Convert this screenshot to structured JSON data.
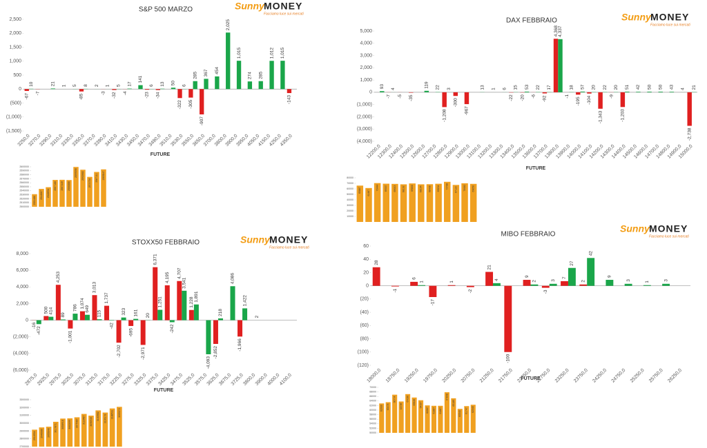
{
  "logo": {
    "first": "Sunny",
    "second": "MONEY",
    "tagline": "Facciamo luce sui mercati"
  },
  "chart_data": [
    {
      "type": "bar",
      "title": "S&P 500 MARZO",
      "x_label": "FUTURE",
      "categories": [
        "3250,0",
        "3270,0",
        "3290,0",
        "3310,0",
        "3330,0",
        "3350,0",
        "3370,0",
        "3390,0",
        "3410,0",
        "3430,0",
        "3450,0",
        "3470,0",
        "3490,0",
        "3510,0",
        "3530,0",
        "3550,0",
        "3650,0",
        "3700,0",
        "3800,0",
        "3900,0",
        "3950,0",
        "4050,0",
        "4150,0",
        "4250,0",
        "4350,0"
      ],
      "series": [
        {
          "color": "#e02020",
          "values": [
            -67,
            -7,
            null,
            null,
            null,
            -85,
            null,
            -3,
            -32,
            -4,
            null,
            -23,
            -34,
            null,
            -322,
            -305,
            -907,
            null,
            null,
            null,
            null,
            null,
            null,
            null,
            -143
          ]
        },
        {
          "color": "#1aa64a",
          "values": [
            10,
            null,
            21,
            1,
            5,
            8,
            2,
            1,
            5,
            17,
            141,
            6,
            13,
            50,
            6,
            285,
            367,
            454,
            2025,
            1015,
            274,
            285,
            1012,
            1015,
            null
          ],
          "value_labels": [
            "10",
            null,
            "21",
            "1",
            "5",
            "8",
            "2",
            "1",
            "5",
            "17",
            "141",
            "6",
            "13",
            "50",
            "6",
            "285",
            "367",
            "454",
            "2,025",
            "1,015",
            "274",
            "285",
            "1,012",
            "1,015",
            null
          ]
        }
      ],
      "ylim": [
        -1500,
        2500
      ],
      "yticks": [
        {
          "value": 2500,
          "label": "2,500"
        },
        {
          "value": 2000,
          "label": "2,000"
        },
        {
          "value": 1500,
          "label": "1,500"
        },
        {
          "value": 1000,
          "label": "1,000"
        },
        500,
        0,
        {
          "value": -500,
          "label": "(500)"
        },
        {
          "value": -1000,
          "label": "(1,000)"
        },
        {
          "value": -1500,
          "label": "(1,500)"
        }
      ]
    },
    {
      "type": "bar",
      "title": "DAX FEBBRAIO",
      "x_label": "FUTURE",
      "categories": [
        "12200,0",
        "12300,0",
        "12400,0",
        "12500,0",
        "12600,0",
        "12700,0",
        "12800,0",
        "12900,0",
        "13000,0",
        "13100,0",
        "13200,0",
        "13300,0",
        "13400,0",
        "13500,0",
        "13600,0",
        "13700,0",
        "13800,0",
        "13900,0",
        "14000,0",
        "14100,0",
        "14200,0",
        "14300,0",
        "14400,0",
        "14500,0",
        "14600,0",
        "14700,0",
        "14800,0",
        "14900,0",
        "15000,0"
      ],
      "series": [
        {
          "color": "#e02020",
          "values": [
            null,
            -7,
            -5,
            -35,
            null,
            null,
            -1208,
            -300,
            -967,
            null,
            null,
            null,
            -22,
            -20,
            -6,
            -92,
            4368,
            -1,
            -195,
            -104,
            -1343,
            -9,
            -1203,
            null,
            null,
            null,
            null,
            null,
            -2738
          ],
          "value_labels": [
            null,
            "-7",
            "-5",
            "-35",
            null,
            null,
            "-1,208",
            "-300",
            "-967",
            null,
            null,
            null,
            "-22",
            "-20",
            "-6",
            "-92",
            "4,368",
            "-1",
            "-195",
            "-104",
            "-1,343",
            "-9",
            "-1,203",
            null,
            null,
            null,
            null,
            null,
            "-2,738"
          ]
        },
        {
          "color": "#1aa64a",
          "values": [
            93,
            4,
            null,
            null,
            119,
            22,
            3,
            null,
            null,
            13,
            1,
            6,
            15,
            53,
            22,
            17,
            4337,
            18,
            57,
            20,
            22,
            20,
            51,
            42,
            50,
            50,
            43,
            4,
            21
          ],
          "value_labels": [
            "93",
            "4",
            null,
            null,
            "119",
            "22",
            "3",
            null,
            null,
            "13",
            "1",
            "6",
            "15",
            "53",
            "22",
            "17",
            "4,337",
            "18",
            "57",
            "20",
            "22",
            "20",
            "51",
            "42",
            "50",
            "50",
            "43",
            "4",
            "21"
          ]
        }
      ],
      "ylim": [
        -4000,
        5000
      ],
      "yticks": [
        {
          "value": 5000,
          "label": "5,000"
        },
        {
          "value": 4000,
          "label": "4,000"
        },
        {
          "value": 3000,
          "label": "3,000"
        },
        {
          "value": 2000,
          "label": "2,000"
        },
        {
          "value": 1000,
          "label": "1,000"
        },
        0,
        {
          "value": -1000,
          "label": "(1,000)"
        },
        {
          "value": -2000,
          "label": "(2,000)"
        },
        {
          "value": -3000,
          "label": "(3,000)"
        },
        {
          "value": -4000,
          "label": "(4,000)"
        }
      ]
    },
    {
      "type": "bar",
      "title": "STOXX50 FEBBRAIO",
      "x_label": "FUTURE",
      "categories": [
        "2875,0",
        "2925,0",
        "2975,0",
        "3025,0",
        "3075,0",
        "3125,0",
        "3175,0",
        "3225,0",
        "3275,0",
        "3325,0",
        "3375,0",
        "3425,0",
        "3475,0",
        "3525,0",
        "3575,0",
        "3625,0",
        "3675,0",
        "3725,0",
        "3800,0",
        "3900,0",
        "4000,0",
        "4100,0"
      ],
      "series": [
        {
          "color": "#e02020",
          "values": [
            -16,
            500,
            4253,
            -1001,
            1074,
            3013,
            1737,
            -2702,
            -695,
            -2971,
            6371,
            4195,
            4707,
            1228,
            null,
            -2852,
            null,
            -1966,
            null,
            null,
            null,
            null
          ],
          "value_labels": [
            "-16",
            "500",
            "4,253",
            "-1,001",
            "1,074",
            "3,013",
            "1,737",
            "-2,702",
            "-695",
            "-2,971",
            "6,371",
            "4,195",
            "4,707",
            "1,228",
            null,
            "-2,852",
            null,
            "-1,966",
            null,
            null,
            null,
            null
          ]
        },
        {
          "color": "#1aa64a",
          "values": [
            -472,
            414,
            89,
            786,
            649,
            115,
            -42,
            323,
            161,
            20,
            1251,
            -242,
            3541,
            1891,
            -4093,
            218,
            4086,
            1422,
            2,
            null,
            null,
            null
          ],
          "value_labels": [
            "-472",
            "414",
            "89",
            "786",
            "649",
            "115",
            "-42",
            "323",
            "161",
            "20",
            "1,251",
            "-242",
            "3,541",
            "1,891",
            "-4,093",
            "218",
            "4,086",
            "1,422",
            "2",
            null,
            null,
            null
          ]
        }
      ],
      "ylim": [
        -6000,
        8000
      ],
      "yticks": [
        {
          "value": 8000,
          "label": "8,000"
        },
        {
          "value": 6000,
          "label": "6,000"
        },
        {
          "value": 4000,
          "label": "4,000"
        },
        {
          "value": 2000,
          "label": "2,000"
        },
        0,
        {
          "value": -2000,
          "label": "(2,000)"
        },
        {
          "value": -4000,
          "label": "(4,000)"
        },
        {
          "value": -6000,
          "label": "(6,000)"
        }
      ]
    },
    {
      "type": "bar",
      "title": "MIBO FEBBRAIO",
      "x_label": "FUTURE",
      "categories": [
        "18000,0",
        "18750,0",
        "19250,0",
        "19750,0",
        "20250,0",
        "20750,0",
        "21250,0",
        "21750,0",
        "22250,0",
        "22750,0",
        "23250,0",
        "23750,0",
        "24250,0",
        "24750,0",
        "25250,0",
        "25750,0",
        "26250,0"
      ],
      "series": [
        {
          "color": "#e02020",
          "values": [
            28,
            -1,
            6,
            -17,
            1,
            -2,
            21,
            -100,
            9,
            -3,
            7,
            2,
            null,
            null,
            null,
            null,
            null
          ]
        },
        {
          "color": "#1aa64a",
          "values": [
            null,
            null,
            1,
            null,
            null,
            null,
            4,
            null,
            2,
            3,
            27,
            42,
            9,
            3,
            1,
            3,
            null
          ]
        }
      ],
      "ylim": [
        -120,
        60
      ],
      "yticks": [
        60,
        40,
        20,
        0,
        {
          "value": -20,
          "label": "(20)"
        },
        {
          "value": -40,
          "label": "(40)"
        },
        {
          "value": -60,
          "label": "(60)"
        },
        {
          "value": -80,
          "label": "(80)"
        },
        {
          "value": -100,
          "label": "(100)"
        },
        {
          "value": -120,
          "label": "(120)"
        }
      ]
    },
    {
      "type": "bar",
      "color": "#f0a020",
      "values": [
        2531480,
        2544667,
        2548954,
        2567188,
        2567449,
        2566888,
        2599598,
        2592682,
        2574754,
        2587111,
        2593547
      ],
      "ylim": [
        2500000,
        2600000
      ],
      "yticks": [
        2500000,
        2510000,
        2520000,
        2530000,
        2540000,
        2550000,
        2560000,
        2570000,
        2580000,
        2590000,
        2600000
      ]
    },
    {
      "type": "bar",
      "color": "#f0a020",
      "values": [
        65887,
        61487,
        70444,
        69337,
        69003,
        68192,
        69800,
        68194,
        68408,
        69234,
        72788,
        67122,
        70082,
        69050
      ],
      "ylim": [
        0,
        80000
      ],
      "yticks": [
        10000,
        20000,
        30000,
        40000,
        50000,
        60000,
        70000,
        80000
      ]
    },
    {
      "type": "bar",
      "color": "#f0a020",
      "values": [
        2916934,
        2946080,
        2955040,
        3017871,
        3058918,
        3062099,
        3075487,
        3118487,
        3096933,
        3163982,
        3136178,
        3188531,
        3209272
      ],
      "ylim": [
        2700000,
        3300000
      ],
      "yticks": [
        2700000,
        2800000,
        2900000,
        3000000,
        3100000,
        3200000,
        3300000
      ]
    },
    {
      "type": "bar",
      "color": "#f0a020",
      "values": [
        62930,
        63478,
        66774,
        63789,
        67030,
        65526,
        64337,
        62067,
        61887,
        61887,
        67848,
        65189,
        60540,
        61747,
        62345
      ],
      "ylim": [
        50000,
        70000
      ],
      "yticks": [
        50000,
        52000,
        54000,
        56000,
        58000,
        60000,
        62000,
        64000,
        66000,
        68000,
        70000
      ]
    }
  ]
}
